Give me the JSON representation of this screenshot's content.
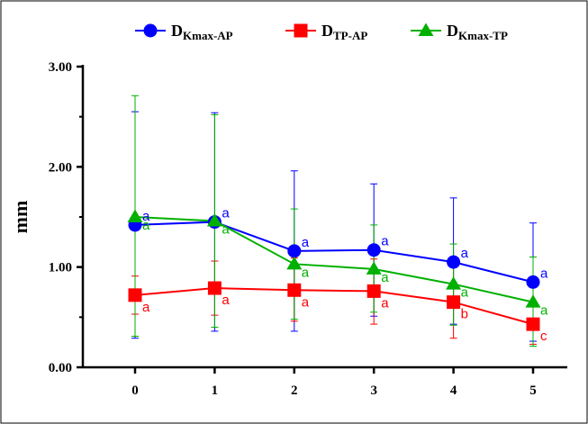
{
  "chart_data": {
    "type": "line",
    "ylabel": "mm",
    "ylim": [
      0,
      3
    ],
    "y_ticks": [
      "0.00",
      "1.00",
      "2.00",
      "3.00"
    ],
    "y_tick_values": [
      0,
      1,
      2,
      3
    ],
    "x_categories": [
      "0",
      "1",
      "2",
      "3",
      "4",
      "5"
    ],
    "legend_position": "top",
    "grid": false,
    "series": [
      {
        "name_main": "D",
        "name_sub": "Kmax-AP",
        "color": "#0000ff",
        "marker": "circle",
        "values": [
          1.42,
          1.45,
          1.16,
          1.17,
          1.05,
          0.85
        ],
        "err_upper": [
          2.55,
          2.54,
          1.96,
          1.83,
          1.69,
          1.44
        ],
        "err_lower": [
          0.29,
          0.36,
          0.36,
          0.51,
          0.43,
          0.26
        ],
        "labels": [
          "a",
          "a",
          "a",
          "a",
          "a",
          "a"
        ]
      },
      {
        "name_main": "D",
        "name_sub": "TP-AP",
        "color": "#ff0000",
        "marker": "square",
        "values": [
          0.72,
          0.79,
          0.77,
          0.76,
          0.65,
          0.43
        ],
        "err_upper": [
          0.91,
          1.06,
          1.09,
          1.08,
          1.0,
          0.62
        ],
        "err_lower": [
          0.53,
          0.52,
          0.46,
          0.43,
          0.29,
          0.23
        ],
        "labels": [
          "a",
          "a",
          "a",
          "a",
          "b",
          "c"
        ]
      },
      {
        "name_main": "D",
        "name_sub": "Kmax-TP",
        "color": "#00b000",
        "marker": "triangle",
        "values": [
          1.5,
          1.46,
          1.03,
          0.98,
          0.83,
          0.65
        ],
        "err_upper": [
          2.71,
          2.52,
          1.58,
          1.42,
          1.23,
          1.1
        ],
        "err_lower": [
          0.31,
          0.4,
          0.48,
          0.55,
          0.42,
          0.21
        ],
        "labels": [
          "a",
          "a",
          "a",
          "a",
          "a",
          "a"
        ]
      }
    ]
  }
}
